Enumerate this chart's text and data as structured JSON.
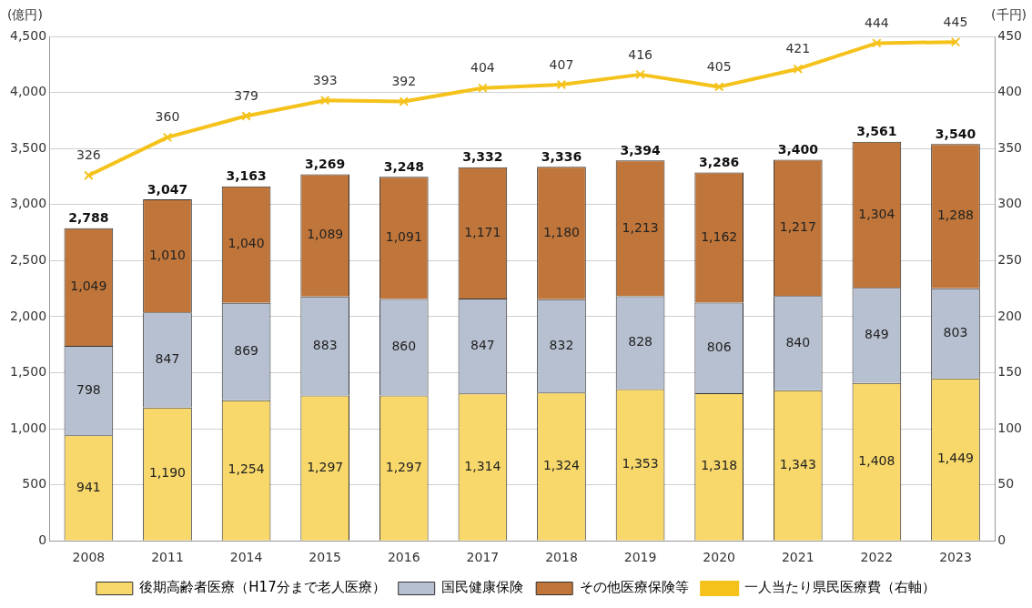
{
  "chart_data": {
    "type": "bar",
    "stacked": true,
    "ylabel": "(億円)",
    "y2label": "(千円)",
    "categories": [
      "2008",
      "2011",
      "2014",
      "2015",
      "2016",
      "2017",
      "2018",
      "2019",
      "2020",
      "2021",
      "2022",
      "2023"
    ],
    "series": [
      {
        "name": "後期高齢者医療（H17分まで老人医療）",
        "color": "#f8d86a",
        "values": [
          941,
          1190,
          1254,
          1297,
          1297,
          1314,
          1324,
          1353,
          1318,
          1343,
          1408,
          1449
        ],
        "value_labels": [
          "941",
          "1,190",
          "1,254",
          "1,297",
          "1,297",
          "1,314",
          "1,324",
          "1,353",
          "1,318",
          "1,343",
          "1,408",
          "1,449"
        ]
      },
      {
        "name": "国民健康保険",
        "color": "#b7c0d0",
        "values": [
          798,
          847,
          869,
          883,
          860,
          847,
          832,
          828,
          806,
          840,
          849,
          803
        ],
        "value_labels": [
          "798",
          "847",
          "869",
          "883",
          "860",
          "847",
          "832",
          "828",
          "806",
          "840",
          "849",
          "803"
        ]
      },
      {
        "name": "その他医療保険等",
        "color": "#c0763a",
        "values": [
          1049,
          1010,
          1040,
          1089,
          1091,
          1171,
          1180,
          1213,
          1162,
          1217,
          1304,
          1288
        ],
        "value_labels": [
          "1,049",
          "1,010",
          "1,040",
          "1,089",
          "1,091",
          "1,171",
          "1,180",
          "1,213",
          "1,162",
          "1,217",
          "1,304",
          "1,288"
        ]
      },
      {
        "name": "一人当たり県民医療費（右軸）",
        "type": "line",
        "axis": "y2",
        "color": "#f5c21b",
        "marker": "cross",
        "values": [
          326,
          360,
          379,
          393,
          392,
          404,
          407,
          416,
          405,
          421,
          444,
          445
        ],
        "value_labels": [
          "326",
          "360",
          "379",
          "393",
          "392",
          "404",
          "407",
          "416",
          "405",
          "421",
          "444",
          "445"
        ]
      }
    ],
    "totals": [
      "2,788",
      "3,047",
      "3,163",
      "3,269",
      "3,248",
      "3,332",
      "3,336",
      "3,394",
      "3,286",
      "3,400",
      "3,561",
      "3,540"
    ],
    "ylim": [
      0,
      4500
    ],
    "yticks": [
      0,
      500,
      {
        "value": 1000,
        "label": "1,000"
      },
      {
        "value": 1500,
        "label": "1,500"
      },
      {
        "value": 2000,
        "label": "2,000"
      },
      {
        "value": 2500,
        "label": "2,500"
      },
      {
        "value": 3000,
        "label": "3,000"
      },
      {
        "value": 3500,
        "label": "3,500"
      },
      {
        "value": 4000,
        "label": "4,000"
      },
      {
        "value": 4500,
        "label": "4,500"
      }
    ],
    "y2lim": [
      0,
      450
    ],
    "y2ticks": [
      0,
      50,
      100,
      150,
      200,
      250,
      300,
      350,
      400,
      450
    ],
    "grid": "y",
    "legend": "bottom"
  }
}
